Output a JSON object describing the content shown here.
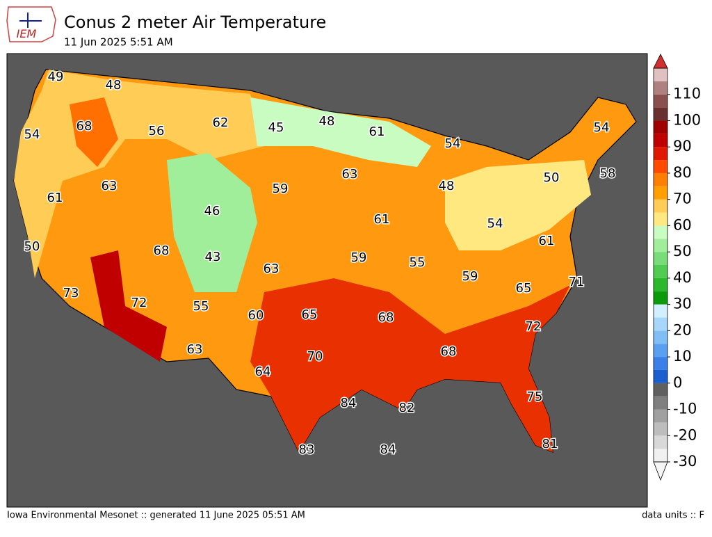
{
  "header": {
    "title": "Conus 2 meter Air Temperature",
    "subtitle": "11 Jun 2025 5:51 AM",
    "logo": "IEM"
  },
  "stations": [
    49,
    48,
    54,
    68,
    56,
    62,
    45,
    48,
    61,
    54,
    54,
    58,
    50,
    63,
    48,
    63,
    61,
    59,
    46,
    61,
    54,
    61,
    50,
    68,
    43,
    63,
    59,
    55,
    59,
    65,
    71,
    73,
    72,
    55,
    60,
    65,
    68,
    72,
    63,
    68,
    70,
    64,
    75,
    84,
    82,
    81,
    83,
    84
  ],
  "colorbar": {
    "range": [
      -30,
      120
    ],
    "ticks": [
      -30,
      -20,
      -10,
      0,
      10,
      20,
      30,
      40,
      50,
      60,
      70,
      80,
      90,
      100,
      110
    ],
    "colors": [
      "#f0f0f0",
      "#d8d8d8",
      "#bdbdbd",
      "#a0a0a0",
      "#808080",
      "#606060",
      "#1a5fd0",
      "#3a80e8",
      "#5aa0f0",
      "#80bff5",
      "#a6d6fa",
      "#d0f0ff",
      "#0a9a0a",
      "#2cb82c",
      "#50cc50",
      "#78dd78",
      "#a0ee9a",
      "#c8fcc0",
      "#ffe880",
      "#ffcc55",
      "#ffa000",
      "#ff8000",
      "#ff4a00",
      "#e01800",
      "#c00000",
      "#a00000",
      "#6a3030",
      "#8a5050",
      "#b08080",
      "#e0c0c0"
    ],
    "under_color": "#f5f5f5",
    "over_color": "#d03030"
  },
  "footer": {
    "left": "Iowa Environmental Mesonet :: generated 11 June 2025 05:51 AM",
    "right": "data units :: F"
  }
}
